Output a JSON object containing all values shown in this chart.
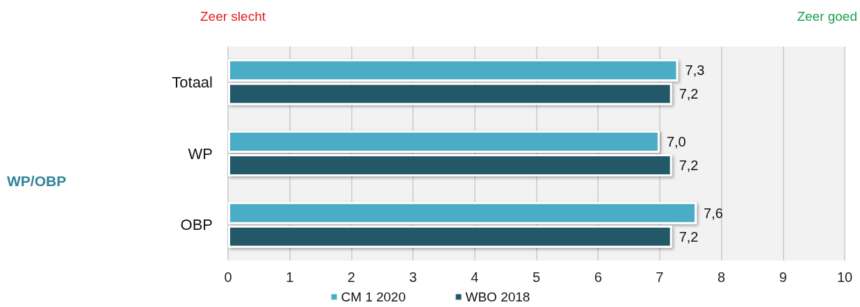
{
  "chart_data": {
    "type": "bar",
    "orientation": "horizontal",
    "annotations": [
      "Zeer slecht",
      "Zeer goed",
      "WP/OBP"
    ],
    "categories": [
      "Totaal",
      "WP",
      "OBP"
    ],
    "series": [
      {
        "name": "CM 1 2020",
        "color": "#4bacc6",
        "values": [
          7.3,
          7.0,
          7.6
        ],
        "value_labels": [
          "7,3",
          "7,0",
          "7,6"
        ]
      },
      {
        "name": "WBO 2018",
        "color": "#215968",
        "values": [
          7.2,
          7.2,
          7.2
        ],
        "value_labels": [
          "7,2",
          "7,2",
          "7,2"
        ]
      }
    ],
    "xlim": [
      0,
      10
    ],
    "xticks": [
      0,
      1,
      2,
      3,
      4,
      5,
      6,
      7,
      8,
      9,
      10
    ],
    "grid": "x",
    "legend": "bottom"
  }
}
